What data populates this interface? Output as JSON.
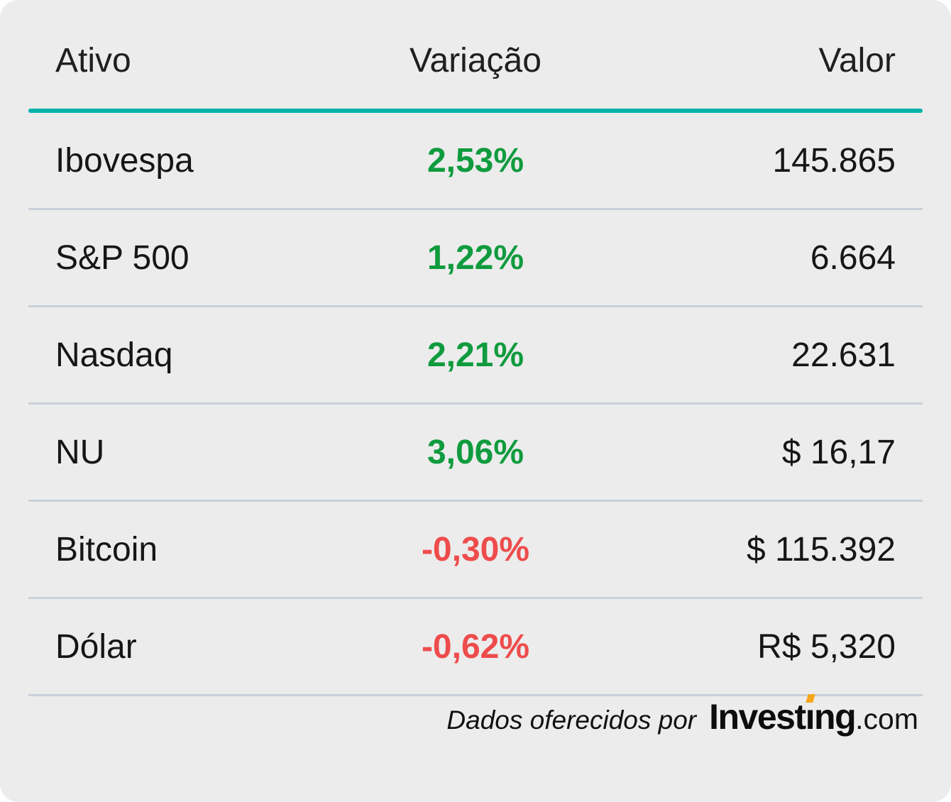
{
  "chart_data": {
    "type": "table",
    "columns": [
      "Ativo",
      "Variação",
      "Valor"
    ],
    "rows": [
      {
        "asset": "Ibovespa",
        "change": "2,53%",
        "change_direction": "up",
        "value": "145.865"
      },
      {
        "asset": "S&P 500",
        "change": "1,22%",
        "change_direction": "up",
        "value": "6.664"
      },
      {
        "asset": "Nasdaq",
        "change": "2,21%",
        "change_direction": "up",
        "value": "22.631"
      },
      {
        "asset": "NU",
        "change": "3,06%",
        "change_direction": "up",
        "value": "$ 16,17"
      },
      {
        "asset": "Bitcoin",
        "change": "-0,30%",
        "change_direction": "down",
        "value": "$ 115.392"
      },
      {
        "asset": "Dólar",
        "change": "-0,62%",
        "change_direction": "down",
        "value": "R$ 5,320"
      }
    ]
  },
  "footer": {
    "credit_text": "Dados oferecidos por",
    "logo": {
      "part1": "Invest",
      "dotless_i": "ı",
      "part2": "ng",
      "suffix": ".com"
    }
  },
  "colors": {
    "card_background": "#ececec",
    "header_rule_teal": "#00b2a8",
    "row_separator": "#c9d0da",
    "positive_green": "#0f9b3e",
    "negative_red": "#ee4c4c",
    "logo_orange": "#f7a51b",
    "text_dark": "#1a1a1a"
  }
}
